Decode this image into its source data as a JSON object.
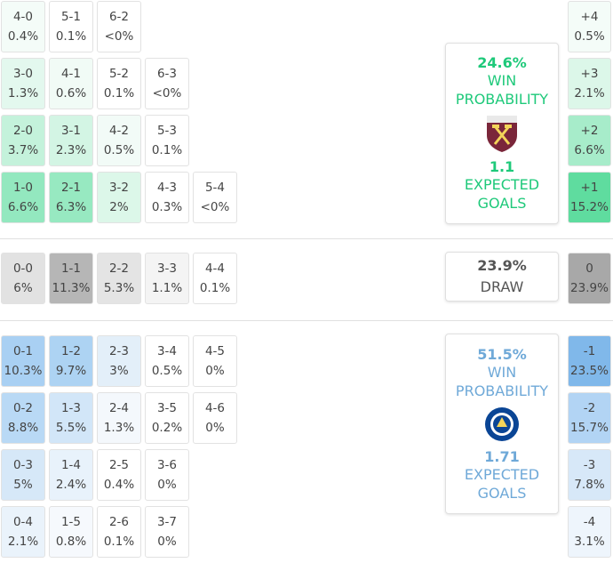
{
  "home": {
    "rows": [
      [
        {
          "score": "4-0",
          "pct": "0.4%",
          "color": "#f4fcf8"
        },
        {
          "score": "5-1",
          "pct": "0.1%",
          "color": "#ffffff"
        },
        {
          "score": "6-2",
          "pct": "<0%",
          "color": "#ffffff"
        }
      ],
      [
        {
          "score": "3-0",
          "pct": "1.3%",
          "color": "#e3f8ee"
        },
        {
          "score": "4-1",
          "pct": "0.6%",
          "color": "#f1fbf6"
        },
        {
          "score": "5-2",
          "pct": "0.1%",
          "color": "#ffffff"
        },
        {
          "score": "6-3",
          "pct": "<0%",
          "color": "#ffffff"
        }
      ],
      [
        {
          "score": "2-0",
          "pct": "3.7%",
          "color": "#c4f2db"
        },
        {
          "score": "3-1",
          "pct": "2.3%",
          "color": "#d3f5e4"
        },
        {
          "score": "4-2",
          "pct": "0.5%",
          "color": "#f2fbf7"
        },
        {
          "score": "5-3",
          "pct": "0.1%",
          "color": "#ffffff"
        }
      ],
      [
        {
          "score": "1-0",
          "pct": "6.6%",
          "color": "#93e8bf"
        },
        {
          "score": "2-1",
          "pct": "6.3%",
          "color": "#97e9c1"
        },
        {
          "score": "3-2",
          "pct": "2%",
          "color": "#dcf7e9"
        },
        {
          "score": "4-3",
          "pct": "0.3%",
          "color": "#ffffff"
        },
        {
          "score": "5-4",
          "pct": "<0%",
          "color": "#ffffff"
        }
      ]
    ],
    "diffs": [
      {
        "label": "+4",
        "pct": "0.5%",
        "color": "#f4fcf8"
      },
      {
        "label": "+3",
        "pct": "2.1%",
        "color": "#dcf7e9"
      },
      {
        "label": "+2",
        "pct": "6.6%",
        "color": "#a7ecca"
      },
      {
        "label": "+1",
        "pct": "15.2%",
        "color": "#5fdc9f"
      }
    ],
    "panel": {
      "win": "24.6%",
      "win_label": "WIN PROBABILITY",
      "xg": "1.1",
      "xg_label": "EXPECTED GOALS",
      "color": "#1ec97a"
    }
  },
  "draw": {
    "rows": [
      [
        {
          "score": "0-0",
          "pct": "6%",
          "color": "#e2e2e2"
        },
        {
          "score": "1-1",
          "pct": "11.3%",
          "color": "#b6b6b6"
        },
        {
          "score": "2-2",
          "pct": "5.3%",
          "color": "#e4e4e4"
        },
        {
          "score": "3-3",
          "pct": "1.1%",
          "color": "#f4f4f4"
        },
        {
          "score": "4-4",
          "pct": "0.1%",
          "color": "#ffffff"
        }
      ]
    ],
    "diffs": [
      {
        "label": "0",
        "pct": "23.9%",
        "color": "#a8a8a8"
      }
    ],
    "panel": {
      "win": "23.9%",
      "label": "DRAW",
      "color": "#555555"
    }
  },
  "away": {
    "rows": [
      [
        {
          "score": "0-1",
          "pct": "10.3%",
          "color": "#a9d0f3"
        },
        {
          "score": "1-2",
          "pct": "9.7%",
          "color": "#add3f3"
        },
        {
          "score": "2-3",
          "pct": "3%",
          "color": "#e3eff9"
        },
        {
          "score": "3-4",
          "pct": "0.5%",
          "color": "#ffffff"
        },
        {
          "score": "4-5",
          "pct": "0%",
          "color": "#ffffff"
        }
      ],
      [
        {
          "score": "0-2",
          "pct": "8.8%",
          "color": "#b9d9f5"
        },
        {
          "score": "1-3",
          "pct": "5.5%",
          "color": "#d2e6f8"
        },
        {
          "score": "2-4",
          "pct": "1.3%",
          "color": "#f4f8fc"
        },
        {
          "score": "3-5",
          "pct": "0.2%",
          "color": "#ffffff"
        },
        {
          "score": "4-6",
          "pct": "0%",
          "color": "#ffffff"
        }
      ],
      [
        {
          "score": "0-3",
          "pct": "5%",
          "color": "#d6e8f8"
        },
        {
          "score": "1-4",
          "pct": "2.4%",
          "color": "#e8f2fb"
        },
        {
          "score": "2-5",
          "pct": "0.4%",
          "color": "#ffffff"
        },
        {
          "score": "3-6",
          "pct": "0%",
          "color": "#ffffff"
        }
      ],
      [
        {
          "score": "0-4",
          "pct": "2.1%",
          "color": "#eaf3fb"
        },
        {
          "score": "1-5",
          "pct": "0.8%",
          "color": "#f6f9fd"
        },
        {
          "score": "2-6",
          "pct": "0.1%",
          "color": "#ffffff"
        },
        {
          "score": "3-7",
          "pct": "0%",
          "color": "#ffffff"
        }
      ]
    ],
    "diffs": [
      {
        "label": "-1",
        "pct": "23.5%",
        "color": "#80b8ea"
      },
      {
        "label": "-2",
        "pct": "15.7%",
        "color": "#b2d4f4"
      },
      {
        "label": "-3",
        "pct": "7.8%",
        "color": "#d7e8f8"
      },
      {
        "label": "-4",
        "pct": "3.1%",
        "color": "#eef5fc"
      }
    ],
    "panel": {
      "win": "51.5%",
      "win_label": "WIN PROBABILITY",
      "xg": "1.71",
      "xg_label": "EXPECTED GOALS",
      "color": "#6fa9d8"
    }
  }
}
